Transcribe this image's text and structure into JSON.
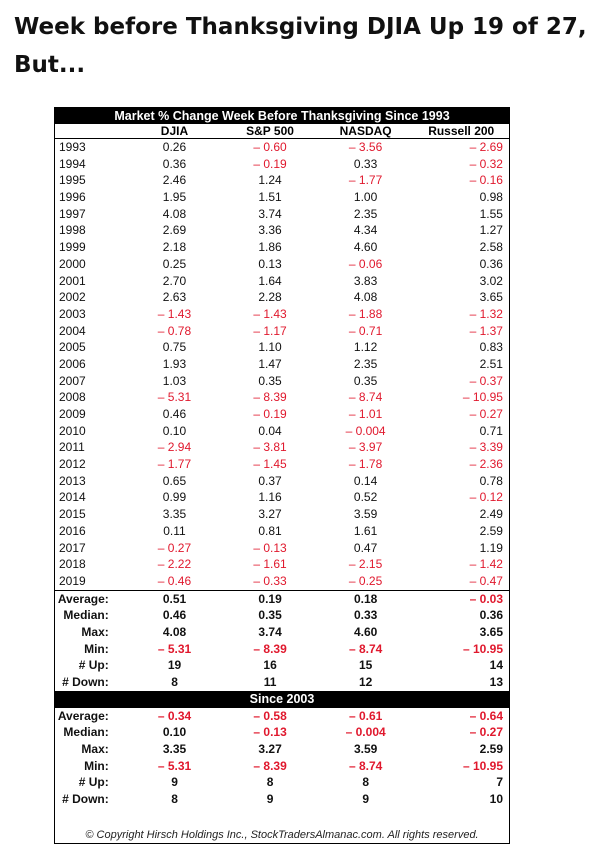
{
  "headline": "Week before Thanksgiving DJIA Up 19 of 27, But...",
  "table": {
    "title": "Market % Change Week Before Thanksgiving Since 1993",
    "columns": [
      "DJIA",
      "S&P 500",
      "NASDAQ",
      "Russell 200"
    ],
    "years": [
      {
        "year": "1993",
        "v": [
          "0.26",
          "-0.60",
          "-3.56",
          "-2.69"
        ]
      },
      {
        "year": "1994",
        "v": [
          "0.36",
          "-0.19",
          "0.33",
          "-0.32"
        ]
      },
      {
        "year": "1995",
        "v": [
          "2.46",
          "1.24",
          "-1.77",
          "-0.16"
        ]
      },
      {
        "year": "1996",
        "v": [
          "1.95",
          "1.51",
          "1.00",
          "0.98"
        ]
      },
      {
        "year": "1997",
        "v": [
          "4.08",
          "3.74",
          "2.35",
          "1.55"
        ]
      },
      {
        "year": "1998",
        "v": [
          "2.69",
          "3.36",
          "4.34",
          "1.27"
        ]
      },
      {
        "year": "1999",
        "v": [
          "2.18",
          "1.86",
          "4.60",
          "2.58"
        ]
      },
      {
        "year": "2000",
        "v": [
          "0.25",
          "0.13",
          "-0.06",
          "0.36"
        ]
      },
      {
        "year": "2001",
        "v": [
          "2.70",
          "1.64",
          "3.83",
          "3.02"
        ]
      },
      {
        "year": "2002",
        "v": [
          "2.63",
          "2.28",
          "4.08",
          "3.65"
        ]
      },
      {
        "year": "2003",
        "v": [
          "-1.43",
          "-1.43",
          "-1.88",
          "-1.32"
        ]
      },
      {
        "year": "2004",
        "v": [
          "-0.78",
          "-1.17",
          "-0.71",
          "-1.37"
        ]
      },
      {
        "year": "2005",
        "v": [
          "0.75",
          "1.10",
          "1.12",
          "0.83"
        ]
      },
      {
        "year": "2006",
        "v": [
          "1.93",
          "1.47",
          "2.35",
          "2.51"
        ]
      },
      {
        "year": "2007",
        "v": [
          "1.03",
          "0.35",
          "0.35",
          "-0.37"
        ]
      },
      {
        "year": "2008",
        "v": [
          "-5.31",
          "-8.39",
          "-8.74",
          "-10.95"
        ]
      },
      {
        "year": "2009",
        "v": [
          "0.46",
          "-0.19",
          "-1.01",
          "-0.27"
        ]
      },
      {
        "year": "2010",
        "v": [
          "0.10",
          "0.04",
          "-0.004",
          "0.71"
        ]
      },
      {
        "year": "2011",
        "v": [
          "-2.94",
          "-3.81",
          "-3.97",
          "-3.39"
        ]
      },
      {
        "year": "2012",
        "v": [
          "-1.77",
          "-1.45",
          "-1.78",
          "-2.36"
        ]
      },
      {
        "year": "2013",
        "v": [
          "0.65",
          "0.37",
          "0.14",
          "0.78"
        ]
      },
      {
        "year": "2014",
        "v": [
          "0.99",
          "1.16",
          "0.52",
          "-0.12"
        ]
      },
      {
        "year": "2015",
        "v": [
          "3.35",
          "3.27",
          "3.59",
          "2.49"
        ]
      },
      {
        "year": "2016",
        "v": [
          "0.11",
          "0.81",
          "1.61",
          "2.59"
        ]
      },
      {
        "year": "2017",
        "v": [
          "-0.27",
          "-0.13",
          "0.47",
          "1.19"
        ]
      },
      {
        "year": "2018",
        "v": [
          "-2.22",
          "-1.61",
          "-2.15",
          "-1.42"
        ]
      },
      {
        "year": "2019",
        "v": [
          "-0.46",
          "-0.33",
          "-0.25",
          "-0.47"
        ]
      }
    ],
    "summary": [
      {
        "label": "Average:",
        "v": [
          "0.51",
          "0.19",
          "0.18",
          "-0.03"
        ]
      },
      {
        "label": "Median:",
        "v": [
          "0.46",
          "0.35",
          "0.33",
          "0.36"
        ]
      },
      {
        "label": "Max:",
        "v": [
          "4.08",
          "3.74",
          "4.60",
          "3.65"
        ]
      },
      {
        "label": "Min:",
        "v": [
          "-5.31",
          "-8.39",
          "-8.74",
          "-10.95"
        ]
      },
      {
        "label": "# Up:",
        "v": [
          "19",
          "16",
          "15",
          "14"
        ]
      },
      {
        "label": "# Down:",
        "v": [
          "8",
          "11",
          "12",
          "13"
        ]
      }
    ],
    "since_title": "Since 2003",
    "since_summary": [
      {
        "label": "Average:",
        "v": [
          "-0.34",
          "-0.58",
          "-0.61",
          "-0.64"
        ]
      },
      {
        "label": "Median:",
        "v": [
          "0.10",
          "-0.13",
          "-0.004",
          "-0.27"
        ]
      },
      {
        "label": "Max:",
        "v": [
          "3.35",
          "3.27",
          "3.59",
          "2.59"
        ]
      },
      {
        "label": "Min:",
        "v": [
          "-5.31",
          "-8.39",
          "-8.74",
          "-10.95"
        ]
      },
      {
        "label": "# Up:",
        "v": [
          "9",
          "8",
          "8",
          "7"
        ]
      },
      {
        "label": "# Down:",
        "v": [
          "8",
          "9",
          "9",
          "10"
        ]
      }
    ],
    "copyright": "© Copyright Hirsch Holdings Inc., StockTradersAlmanac.com. All rights reserved."
  },
  "colors": {
    "negative": "#e0182d",
    "header_bg": "#000000"
  }
}
